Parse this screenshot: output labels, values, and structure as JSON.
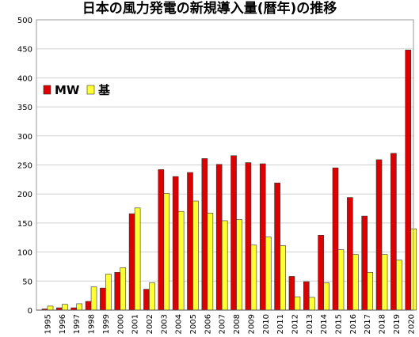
{
  "chart_data": {
    "type": "bar",
    "title": "日本の風力発電の新規導入量(暦年)の推移",
    "xlabel": "",
    "ylabel": "",
    "ylim": [
      0,
      500
    ],
    "yticks": [
      0,
      50,
      100,
      150,
      200,
      250,
      300,
      350,
      400,
      450,
      500
    ],
    "grid": true,
    "legend_position": "top-left",
    "categories": [
      "1995",
      "1996",
      "1997",
      "1998",
      "1999",
      "2000",
      "2001",
      "2002",
      "2003",
      "2004",
      "2005",
      "2006",
      "2007",
      "2008",
      "2009",
      "2010",
      "2011",
      "2012",
      "2013",
      "2014",
      "2015",
      "2016",
      "2017",
      "2018",
      "2019",
      "2020"
    ],
    "series": [
      {
        "name": "MW",
        "color": "#dd0000",
        "values": [
          2,
          4,
          4,
          15,
          38,
          65,
          166,
          36,
          242,
          230,
          237,
          261,
          251,
          266,
          254,
          252,
          219,
          58,
          49,
          129,
          245,
          194,
          162,
          259,
          270,
          448
        ]
      },
      {
        "name": "基",
        "color": "#ffff33",
        "values": [
          7,
          10,
          11,
          40,
          62,
          73,
          176,
          47,
          201,
          170,
          188,
          167,
          154,
          156,
          112,
          126,
          111,
          23,
          22,
          47,
          104,
          96,
          65,
          96,
          86,
          140
        ]
      }
    ]
  }
}
